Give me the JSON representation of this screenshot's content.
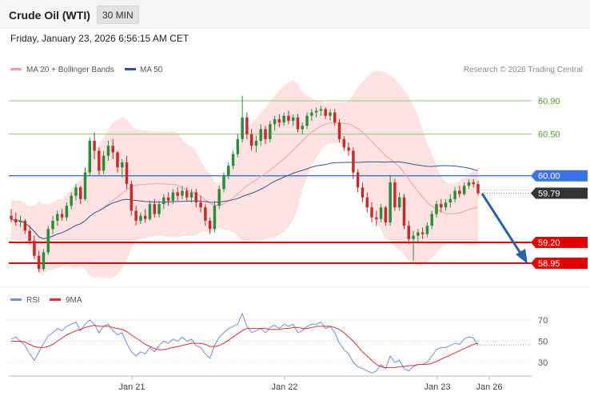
{
  "header": {
    "instrument": "Crude Oil (WTI)",
    "timeframe": "30 MIN",
    "timestamp": "Friday, January 23, 2026 6:56:15 AM CET"
  },
  "legend": {
    "ma20_bb": "MA 20 + Bollinger Bands",
    "ma50": "MA 50",
    "rsi": "RSI",
    "rsi_ma": "9MA",
    "credit": "Research © 2026 Trading Central"
  },
  "colors": {
    "up_candle": "#2c8a3b",
    "down_candle": "#c42b2b",
    "ma20": "#f4a0a0",
    "bollinger_fill": "#fde2e2",
    "ma50": "#2f5597",
    "pivot": "#3b73e6",
    "resistance": "#8fc67a",
    "support": "#e00000",
    "current_price": "#333333",
    "arrow": "#2b62a4",
    "rsi": "#6d8ee0",
    "rsi_ma": "#e03030"
  },
  "levels": {
    "resistance_2": "60.90",
    "resistance_1": "60.50",
    "pivot": "60.00",
    "current": "59.79",
    "support_1": "59.20",
    "support_2": "58.95"
  },
  "rsi_ticks": [
    "70",
    "50",
    "30"
  ],
  "x_ticks": [
    "Jan 21",
    "Jan 22",
    "Jan 23",
    "Jan 26"
  ],
  "chart_data": [
    {
      "type": "candlestick",
      "title": "Crude Oil (WTI)",
      "timeframe": "30 MIN",
      "y_range": [
        58.75,
        61.15
      ],
      "x_ticks": [
        "Jan 21",
        "Jan 22",
        "Jan 23",
        "Jan 26"
      ],
      "key_levels": {
        "resistance": [
          60.9,
          60.5
        ],
        "pivot": 60.0,
        "current_price": 59.79,
        "support": [
          59.2,
          58.95
        ]
      },
      "forecast": "bearish, pointing toward 58.95",
      "ohlc": [
        [
          59.52,
          59.6,
          59.44,
          59.48
        ],
        [
          59.48,
          59.56,
          59.4,
          59.44
        ],
        [
          59.44,
          59.52,
          59.38,
          59.46
        ],
        [
          59.46,
          59.48,
          59.3,
          59.34
        ],
        [
          59.34,
          59.4,
          59.18,
          59.22
        ],
        [
          59.22,
          59.28,
          59.0,
          59.04
        ],
        [
          59.04,
          59.1,
          58.84,
          58.88
        ],
        [
          58.88,
          59.12,
          58.86,
          59.08
        ],
        [
          59.08,
          59.4,
          59.05,
          59.36
        ],
        [
          59.36,
          59.52,
          59.3,
          59.46
        ],
        [
          59.46,
          59.58,
          59.4,
          59.54
        ],
        [
          59.54,
          59.6,
          59.46,
          59.5
        ],
        [
          59.5,
          59.68,
          59.46,
          59.64
        ],
        [
          59.64,
          59.8,
          59.6,
          59.76
        ],
        [
          59.76,
          59.9,
          59.7,
          59.86
        ],
        [
          59.86,
          59.88,
          59.66,
          59.72
        ],
        [
          59.72,
          60.1,
          59.7,
          60.04
        ],
        [
          60.04,
          60.46,
          60.0,
          60.42
        ],
        [
          60.42,
          60.52,
          60.2,
          60.3
        ],
        [
          60.3,
          60.34,
          60.0,
          60.06
        ],
        [
          60.06,
          60.3,
          60.02,
          60.24
        ],
        [
          60.24,
          60.42,
          60.18,
          60.36
        ],
        [
          60.36,
          60.44,
          60.2,
          60.28
        ],
        [
          60.28,
          60.3,
          60.04,
          60.1
        ],
        [
          60.1,
          60.2,
          59.98,
          60.16
        ],
        [
          60.16,
          60.24,
          59.84,
          59.9
        ],
        [
          59.9,
          59.94,
          59.52,
          59.58
        ],
        [
          59.58,
          59.64,
          59.4,
          59.46
        ],
        [
          59.46,
          59.56,
          59.42,
          59.52
        ],
        [
          59.52,
          59.6,
          59.44,
          59.48
        ],
        [
          59.48,
          59.7,
          59.46,
          59.66
        ],
        [
          59.66,
          59.72,
          59.5,
          59.54
        ],
        [
          59.54,
          59.7,
          59.5,
          59.66
        ],
        [
          59.66,
          59.78,
          59.6,
          59.74
        ],
        [
          59.74,
          59.8,
          59.64,
          59.7
        ],
        [
          59.7,
          59.84,
          59.66,
          59.8
        ],
        [
          59.8,
          59.86,
          59.7,
          59.76
        ],
        [
          59.76,
          59.88,
          59.72,
          59.82
        ],
        [
          59.82,
          59.86,
          59.7,
          59.74
        ],
        [
          59.74,
          59.84,
          59.68,
          59.8
        ],
        [
          59.8,
          59.84,
          59.62,
          59.68
        ],
        [
          59.68,
          59.76,
          59.56,
          59.62
        ],
        [
          59.62,
          59.66,
          59.4,
          59.46
        ],
        [
          59.46,
          59.5,
          59.3,
          59.36
        ],
        [
          59.36,
          59.7,
          59.32,
          59.64
        ],
        [
          59.64,
          59.88,
          59.6,
          59.84
        ],
        [
          59.84,
          60.04,
          59.8,
          60.0
        ],
        [
          60.0,
          60.16,
          59.96,
          60.12
        ],
        [
          60.12,
          60.3,
          60.08,
          60.26
        ],
        [
          60.26,
          60.5,
          60.22,
          60.44
        ],
        [
          60.44,
          60.96,
          60.4,
          60.7
        ],
        [
          60.7,
          60.76,
          60.44,
          60.5
        ],
        [
          60.5,
          60.56,
          60.3,
          60.36
        ],
        [
          60.36,
          60.48,
          60.28,
          60.42
        ],
        [
          60.42,
          60.62,
          60.36,
          60.56
        ],
        [
          60.56,
          60.6,
          60.38,
          60.44
        ],
        [
          60.44,
          60.66,
          60.4,
          60.62
        ],
        [
          60.62,
          60.72,
          60.54,
          60.68
        ],
        [
          60.68,
          60.74,
          60.58,
          60.64
        ],
        [
          60.64,
          60.76,
          60.6,
          60.72
        ],
        [
          60.72,
          60.78,
          60.62,
          60.66
        ],
        [
          60.66,
          60.74,
          60.6,
          60.7
        ],
        [
          60.7,
          60.74,
          60.52,
          60.56
        ],
        [
          60.56,
          60.64,
          60.5,
          60.6
        ],
        [
          60.6,
          60.76,
          60.56,
          60.72
        ],
        [
          60.72,
          60.8,
          60.66,
          60.76
        ],
        [
          60.76,
          60.82,
          60.7,
          60.78
        ],
        [
          60.78,
          60.84,
          60.72,
          60.8
        ],
        [
          60.8,
          60.82,
          60.68,
          60.72
        ],
        [
          60.72,
          60.8,
          60.66,
          60.76
        ],
        [
          60.76,
          60.8,
          60.6,
          60.64
        ],
        [
          60.64,
          60.68,
          60.4,
          60.44
        ],
        [
          60.44,
          60.48,
          60.3,
          60.34
        ],
        [
          60.34,
          60.4,
          60.24,
          60.3
        ],
        [
          60.3,
          60.34,
          59.96,
          60.04
        ],
        [
          60.04,
          60.08,
          59.8,
          59.86
        ],
        [
          59.86,
          59.92,
          59.68,
          59.74
        ],
        [
          59.74,
          59.8,
          59.56,
          59.62
        ],
        [
          59.62,
          59.68,
          59.44,
          59.5
        ],
        [
          59.5,
          59.58,
          59.4,
          59.48
        ],
        [
          59.48,
          59.66,
          59.44,
          59.62
        ],
        [
          59.62,
          59.64,
          59.4,
          59.44
        ],
        [
          59.44,
          60.0,
          59.4,
          59.92
        ],
        [
          59.92,
          59.96,
          59.58,
          59.62
        ],
        [
          59.62,
          59.8,
          59.58,
          59.74
        ],
        [
          59.74,
          59.78,
          59.36,
          59.4
        ],
        [
          59.4,
          59.46,
          59.18,
          59.24
        ],
        [
          59.24,
          59.34,
          58.98,
          59.28
        ],
        [
          59.28,
          59.36,
          59.2,
          59.32
        ],
        [
          59.32,
          59.38,
          59.24,
          59.3
        ],
        [
          59.3,
          59.44,
          59.26,
          59.4
        ],
        [
          59.4,
          59.58,
          59.36,
          59.54
        ],
        [
          59.54,
          59.7,
          59.5,
          59.66
        ],
        [
          59.66,
          59.72,
          59.56,
          59.62
        ],
        [
          59.62,
          59.72,
          59.58,
          59.68
        ],
        [
          59.68,
          59.78,
          59.62,
          59.72
        ],
        [
          59.72,
          59.86,
          59.68,
          59.82
        ],
        [
          59.82,
          59.88,
          59.74,
          59.78
        ],
        [
          59.78,
          59.92,
          59.76,
          59.88
        ],
        [
          59.88,
          59.96,
          59.84,
          59.92
        ],
        [
          59.92,
          59.96,
          59.86,
          59.9
        ],
        [
          59.9,
          59.94,
          59.76,
          59.79
        ]
      ]
    },
    {
      "type": "line",
      "title": "RSI",
      "y_ticks": [
        70,
        50,
        30
      ],
      "series": [
        {
          "name": "RSI",
          "values": [
            52,
            54,
            50,
            46,
            38,
            32,
            40,
            48,
            55,
            58,
            62,
            60,
            64,
            66,
            68,
            60,
            66,
            70,
            66,
            58,
            64,
            66,
            60,
            56,
            58,
            48,
            40,
            36,
            40,
            38,
            44,
            40,
            46,
            50,
            48,
            52,
            50,
            54,
            50,
            52,
            46,
            44,
            38,
            34,
            46,
            54,
            58,
            62,
            64,
            66,
            76,
            64,
            58,
            60,
            62,
            58,
            63,
            65,
            62,
            66,
            64,
            66,
            58,
            60,
            64,
            66,
            66,
            68,
            62,
            64,
            58,
            48,
            42,
            38,
            30,
            26,
            24,
            22,
            20,
            22,
            28,
            24,
            36,
            30,
            32,
            24,
            22,
            26,
            28,
            28,
            30,
            36,
            42,
            44,
            44,
            46,
            48,
            47,
            52,
            54,
            53,
            46
          ]
        },
        {
          "name": "9MA",
          "values": [
            50,
            50,
            50,
            49,
            47,
            45,
            44,
            44,
            45,
            47,
            50,
            53,
            56,
            58,
            60,
            61,
            63,
            64,
            65,
            64,
            64,
            64,
            63,
            62,
            61,
            59,
            56,
            53,
            50,
            47,
            45,
            43,
            42,
            42,
            43,
            44,
            45,
            46,
            47,
            48,
            48,
            48,
            47,
            45,
            45,
            46,
            48,
            51,
            54,
            57,
            60,
            62,
            62,
            62,
            62,
            62,
            61,
            61,
            61,
            62,
            62,
            63,
            63,
            62,
            62,
            63,
            64,
            64,
            64,
            64,
            63,
            61,
            58,
            54,
            50,
            45,
            40,
            36,
            32,
            28,
            26,
            25,
            25,
            25,
            26,
            26,
            27,
            27,
            28,
            28,
            28,
            29,
            31,
            33,
            35,
            37,
            39,
            41,
            43,
            45,
            47,
            48
          ]
        }
      ]
    }
  ]
}
